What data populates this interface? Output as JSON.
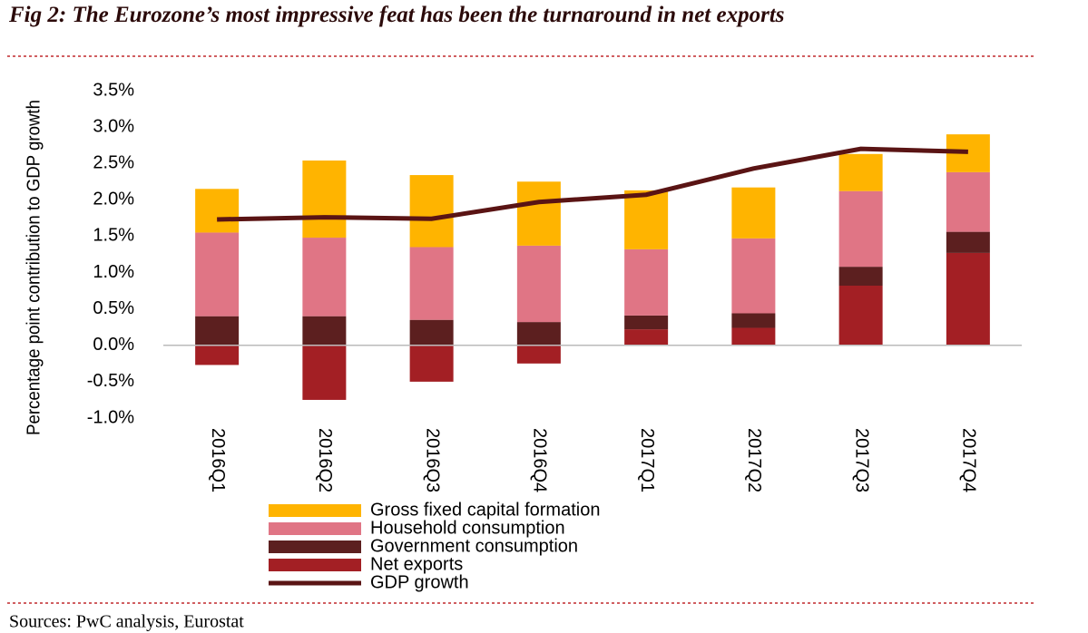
{
  "chart_data": {
    "type": "bar",
    "title": "Fig 2: The Eurozone’s most impressive feat has been the turnaround in net exports",
    "source": "Sources: PwC analysis, Eurostat",
    "y_axis_label": "Percentage point contribution to GDP growth",
    "stacked": true,
    "categories": [
      "2016Q1",
      "2016Q2",
      "2016Q3",
      "2016Q4",
      "2017Q1",
      "2017Q2",
      "2017Q3",
      "2017Q4"
    ],
    "series": [
      {
        "name": "Gross fixed capital formation",
        "color": "#ffb400",
        "values": [
          0.6,
          1.06,
          0.99,
          0.88,
          0.81,
          0.7,
          0.51,
          0.52
        ]
      },
      {
        "name": "Household consumption",
        "color": "#e07585",
        "values": [
          1.15,
          1.08,
          1.0,
          1.05,
          0.91,
          1.03,
          1.04,
          0.82
        ]
      },
      {
        "name": "Government consumption",
        "color": "#5c1f1f",
        "values": [
          0.4,
          0.4,
          0.35,
          0.32,
          0.19,
          0.2,
          0.26,
          0.29
        ]
      },
      {
        "name": "Net exports",
        "color": "#a31f24",
        "values": [
          -0.27,
          -0.75,
          -0.5,
          -0.25,
          0.22,
          0.24,
          0.82,
          1.27
        ]
      },
      {
        "name": "GDP growth",
        "color": "#5a1414",
        "type": "line",
        "values": [
          1.73,
          1.76,
          1.74,
          1.97,
          2.07,
          2.43,
          2.7,
          2.66
        ]
      }
    ],
    "ylim": [
      -1.0,
      3.5
    ],
    "yticks": [
      {
        "value": 3.5,
        "label": "3.5%"
      },
      {
        "value": 3.0,
        "label": "3.0%"
      },
      {
        "value": 2.5,
        "label": "2.5%"
      },
      {
        "value": 2.0,
        "label": "2.0%"
      },
      {
        "value": 1.5,
        "label": "1.5%"
      },
      {
        "value": 1.0,
        "label": "1.0%"
      },
      {
        "value": 0.5,
        "label": "0.5%"
      },
      {
        "value": 0.0,
        "label": "0.0%"
      },
      {
        "value": -0.5,
        "label": "-0.5%"
      },
      {
        "value": -1.0,
        "label": "-1.0%"
      }
    ],
    "grid": false,
    "legend": "bottom"
  }
}
